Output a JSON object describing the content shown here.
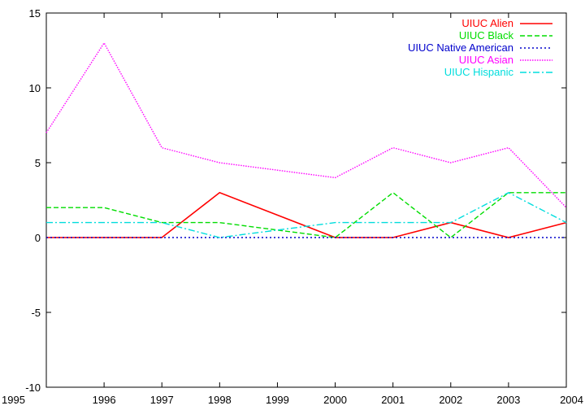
{
  "chart_data": {
    "type": "line",
    "title": "",
    "xlabel": "",
    "ylabel": "",
    "x": [
      1995,
      1996,
      1997,
      1998,
      1999,
      2000,
      2001,
      2002,
      2003,
      2004
    ],
    "xlim": [
      1995,
      2004
    ],
    "ylim": [
      -10,
      15
    ],
    "x_ticks": [
      "1995",
      "1996",
      "1997",
      "1998",
      "1999",
      "2000",
      "2001",
      "2002",
      "2003",
      "2004"
    ],
    "y_ticks": [
      "-10",
      "-5",
      "0",
      "5",
      "10",
      "15"
    ],
    "grid": false,
    "legend_position": "top-right",
    "series": [
      {
        "name": "UIUC Alien",
        "color": "#ff0000",
        "dash": "solid",
        "x": [
          1995,
          1996,
          1997,
          1998,
          2000,
          2001,
          2002,
          2003,
          2004
        ],
        "values": [
          0,
          0,
          0,
          3,
          0,
          0,
          1,
          0,
          1
        ]
      },
      {
        "name": "UIUC Black",
        "color": "#00dd00",
        "dash": "dashed",
        "x": [
          1995,
          1996,
          1997,
          1998,
          2000,
          2001,
          2002,
          2003,
          2004
        ],
        "values": [
          2,
          2,
          1,
          1,
          0,
          3,
          0,
          3,
          3
        ]
      },
      {
        "name": "UIUC Native American",
        "color": "#0000cc",
        "dash": "dotted",
        "x": [
          1995,
          1996,
          1997,
          1998,
          1999,
          2000,
          2001,
          2002,
          2003,
          2004
        ],
        "values": [
          0,
          0,
          0,
          0,
          0,
          0,
          0,
          0,
          0,
          0
        ]
      },
      {
        "name": "UIUC Asian",
        "color": "#ff00ff",
        "dash": "fine-dotted",
        "x": [
          1995,
          1996,
          1997,
          1998,
          2000,
          2001,
          2002,
          2003,
          2004
        ],
        "values": [
          7,
          13,
          6,
          5,
          4,
          6,
          5,
          6,
          2
        ]
      },
      {
        "name": "UIUC Hispanic",
        "color": "#00dddd",
        "dash": "dash-dot",
        "x": [
          1995,
          1996,
          1997,
          1998,
          2000,
          2001,
          2002,
          2003,
          2004
        ],
        "values": [
          1,
          1,
          1,
          0,
          1,
          1,
          1,
          3,
          1
        ]
      }
    ]
  }
}
